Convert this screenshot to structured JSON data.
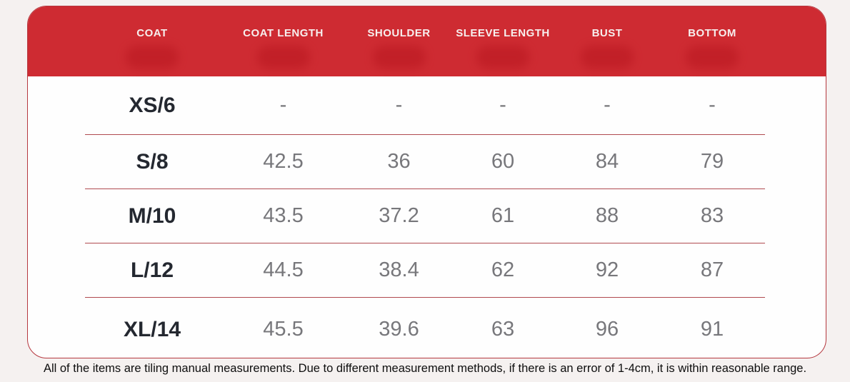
{
  "chart_data": {
    "type": "table",
    "columns": [
      "COAT",
      "COAT LENGTH",
      "SHOULDER",
      "SLEEVE LENGTH",
      "BUST",
      "BOTTOM"
    ],
    "rows": [
      {
        "size": "XS/6",
        "values": [
          "-",
          "-",
          "-",
          "-",
          "-"
        ]
      },
      {
        "size": "S/8",
        "values": [
          "42.5",
          "36",
          "60",
          "84",
          "79"
        ]
      },
      {
        "size": "M/10",
        "values": [
          "43.5",
          "37.2",
          "61",
          "88",
          "83"
        ]
      },
      {
        "size": "L/12",
        "values": [
          "44.5",
          "38.4",
          "62",
          "92",
          "87"
        ]
      },
      {
        "size": "XL/14",
        "values": [
          "45.5",
          "39.6",
          "63",
          "96",
          "91"
        ]
      }
    ],
    "footnote": "All of the items are tiling manual measurements. Due to different measurement methods, if there is an error of 1-4cm, it is within reasonable range."
  },
  "colors": {
    "page_bg": "#f5f1f0",
    "header_bg": "#ce2b32",
    "header_blob": "#c01e26",
    "header_text": "#f7efee",
    "card_border": "#b5383f",
    "divider": "#b04a50",
    "size_text": "#242830",
    "value_text": "#77777b"
  }
}
